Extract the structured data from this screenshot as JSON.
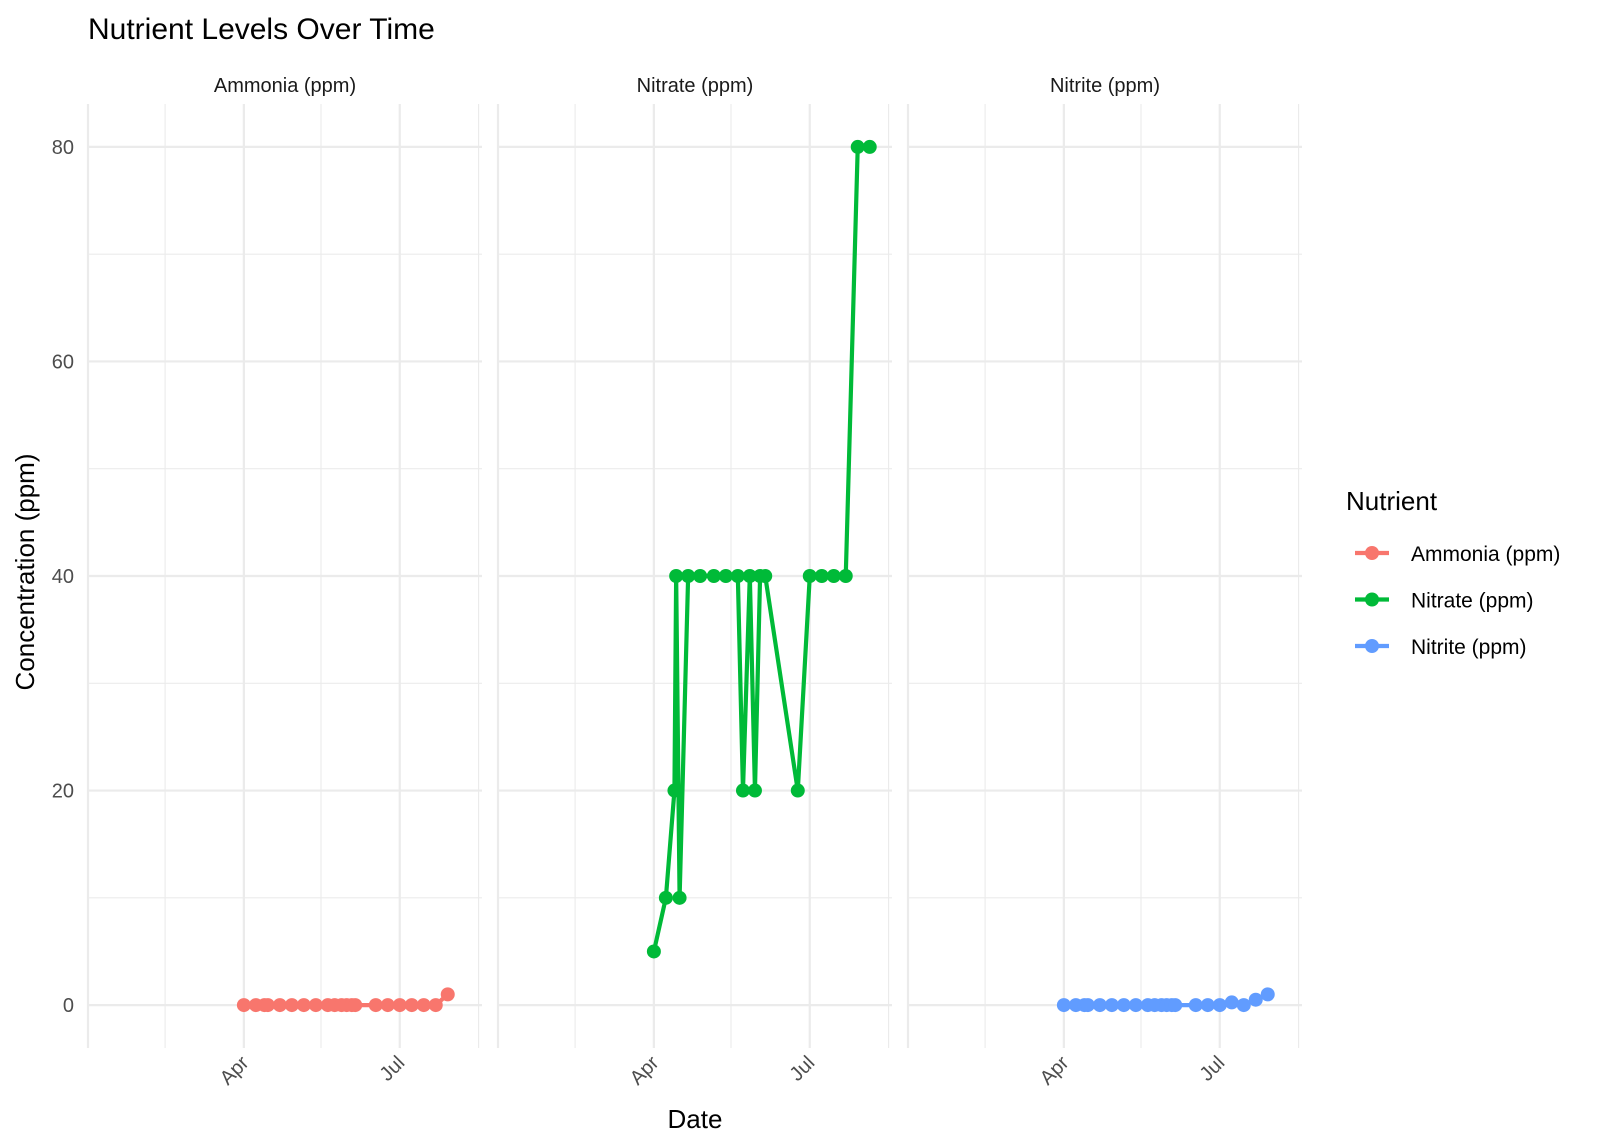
{
  "chart_data": {
    "type": "line",
    "title": "Nutrient Levels Over Time",
    "xlabel": "Date",
    "ylabel": "Concentration (ppm)",
    "x_ticks": [
      "Apr",
      "Jul"
    ],
    "y_ticks": [
      0,
      20,
      40,
      60,
      80
    ],
    "ylim": [
      -4,
      84
    ],
    "xlim": [
      "2024-01-01",
      "2024-08-18"
    ],
    "grid": true,
    "legend": {
      "title": "Nutrient",
      "position": "right"
    },
    "facets": [
      "Ammonia (ppm)",
      "Nitrate (ppm)",
      "Nitrite (ppm)"
    ],
    "series": [
      {
        "name": "Ammonia (ppm)",
        "color": "#F8766D",
        "points": [
          {
            "date": "2024-04-01",
            "value": 0
          },
          {
            "date": "2024-04-08",
            "value": 0
          },
          {
            "date": "2024-04-13",
            "value": 0
          },
          {
            "date": "2024-04-15",
            "value": 0
          },
          {
            "date": "2024-04-22",
            "value": 0
          },
          {
            "date": "2024-04-29",
            "value": 0
          },
          {
            "date": "2024-05-06",
            "value": 0
          },
          {
            "date": "2024-05-13",
            "value": 0
          },
          {
            "date": "2024-05-20",
            "value": 0
          },
          {
            "date": "2024-05-24",
            "value": 0
          },
          {
            "date": "2024-05-28",
            "value": 0
          },
          {
            "date": "2024-05-31",
            "value": 0
          },
          {
            "date": "2024-06-03",
            "value": 0
          },
          {
            "date": "2024-06-05",
            "value": 0
          },
          {
            "date": "2024-06-17",
            "value": 0
          },
          {
            "date": "2024-06-24",
            "value": 0
          },
          {
            "date": "2024-07-01",
            "value": 0
          },
          {
            "date": "2024-07-08",
            "value": 0
          },
          {
            "date": "2024-07-15",
            "value": 0
          },
          {
            "date": "2024-07-22",
            "value": 0
          },
          {
            "date": "2024-07-29",
            "value": 1
          }
        ]
      },
      {
        "name": "Nitrate (ppm)",
        "color": "#00BA38",
        "points": [
          {
            "date": "2024-04-01",
            "value": 5
          },
          {
            "date": "2024-04-08",
            "value": 10
          },
          {
            "date": "2024-04-13",
            "value": 20
          },
          {
            "date": "2024-04-14",
            "value": 40
          },
          {
            "date": "2024-04-16",
            "value": 10
          },
          {
            "date": "2024-04-21",
            "value": 40
          },
          {
            "date": "2024-04-28",
            "value": 40
          },
          {
            "date": "2024-05-06",
            "value": 40
          },
          {
            "date": "2024-05-13",
            "value": 40
          },
          {
            "date": "2024-05-20",
            "value": 40
          },
          {
            "date": "2024-05-23",
            "value": 20
          },
          {
            "date": "2024-05-27",
            "value": 40
          },
          {
            "date": "2024-05-30",
            "value": 20
          },
          {
            "date": "2024-06-02",
            "value": 40
          },
          {
            "date": "2024-06-05",
            "value": 40
          },
          {
            "date": "2024-06-24",
            "value": 20
          },
          {
            "date": "2024-07-01",
            "value": 40
          },
          {
            "date": "2024-07-08",
            "value": 40
          },
          {
            "date": "2024-07-15",
            "value": 40
          },
          {
            "date": "2024-07-22",
            "value": 40
          },
          {
            "date": "2024-07-29",
            "value": 80
          },
          {
            "date": "2024-08-05",
            "value": 80
          }
        ]
      },
      {
        "name": "Nitrite (ppm)",
        "color": "#619CFF",
        "points": [
          {
            "date": "2024-04-01",
            "value": 0
          },
          {
            "date": "2024-04-08",
            "value": 0
          },
          {
            "date": "2024-04-13",
            "value": 0
          },
          {
            "date": "2024-04-15",
            "value": 0
          },
          {
            "date": "2024-04-22",
            "value": 0
          },
          {
            "date": "2024-04-29",
            "value": 0
          },
          {
            "date": "2024-05-06",
            "value": 0
          },
          {
            "date": "2024-05-13",
            "value": 0
          },
          {
            "date": "2024-05-20",
            "value": 0
          },
          {
            "date": "2024-05-24",
            "value": 0
          },
          {
            "date": "2024-05-28",
            "value": 0
          },
          {
            "date": "2024-05-31",
            "value": 0
          },
          {
            "date": "2024-06-03",
            "value": 0
          },
          {
            "date": "2024-06-05",
            "value": 0
          },
          {
            "date": "2024-06-17",
            "value": 0
          },
          {
            "date": "2024-06-24",
            "value": 0
          },
          {
            "date": "2024-07-01",
            "value": 0
          },
          {
            "date": "2024-07-08",
            "value": 0.25
          },
          {
            "date": "2024-07-15",
            "value": 0
          },
          {
            "date": "2024-07-22",
            "value": 0.5
          },
          {
            "date": "2024-07-29",
            "value": 1
          }
        ]
      }
    ]
  }
}
